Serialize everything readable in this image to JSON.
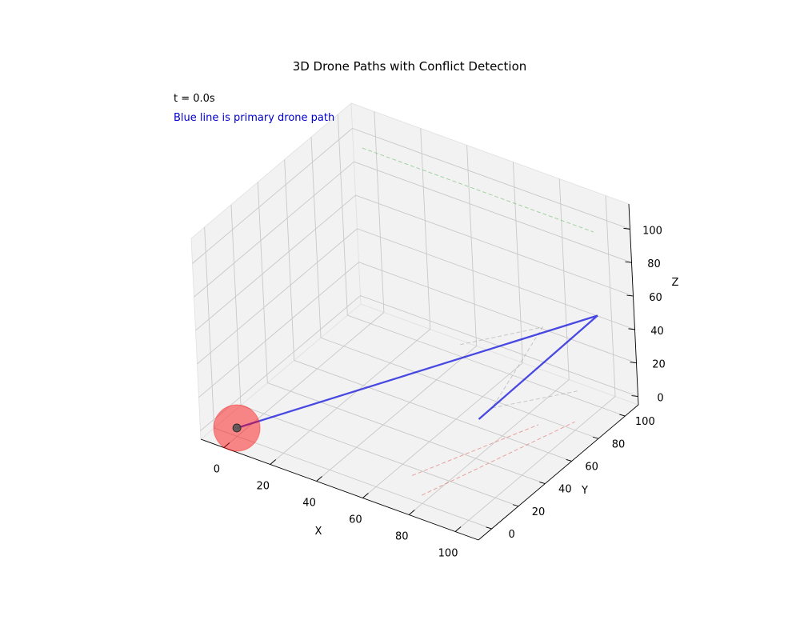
{
  "chart_data": {
    "type": "line",
    "projection": "3d",
    "title": "3D Drone Paths with Conflict Detection",
    "annotations": {
      "time": "t = 0.0s",
      "note": "Blue line is primary drone path",
      "note_color": "#0000cc"
    },
    "xlabel": "X",
    "ylabel": "Y",
    "zlabel": "Z",
    "xlim": [
      -10,
      110
    ],
    "ylim": [
      -10,
      110
    ],
    "zlim": [
      -5,
      115
    ],
    "xticks": [
      0,
      20,
      40,
      60,
      80,
      100
    ],
    "yticks": [
      0,
      20,
      40,
      60,
      80,
      100
    ],
    "zticks": [
      0,
      20,
      40,
      60,
      80,
      100
    ],
    "grid": true,
    "series": [
      {
        "role": "primary",
        "color": "#0000dd",
        "style": "solid",
        "points": [
          [
            0,
            0,
            0
          ],
          [
            100,
            100,
            50
          ],
          [
            70,
            60,
            0
          ]
        ]
      },
      {
        "role": "other",
        "color": "#2ca02c",
        "style": "dashed",
        "points": [
          [
            0,
            100,
            100
          ],
          [
            100,
            100,
            100
          ]
        ]
      },
      {
        "role": "other",
        "color": "#888888",
        "style": "dashed",
        "points": [
          [
            100,
            0,
            100
          ],
          [
            100,
            60,
            70
          ],
          [
            70,
            70,
            0
          ],
          [
            90,
            100,
            0
          ]
        ]
      },
      {
        "role": "other",
        "color": "#d62728",
        "style": "dashed",
        "points": [
          [
            80,
            0,
            0
          ],
          [
            100,
            80,
            0
          ]
        ]
      },
      {
        "role": "other",
        "color": "#d62728",
        "style": "dashed",
        "points": [
          [
            70,
            10,
            0
          ],
          [
            90,
            70,
            0
          ]
        ]
      }
    ],
    "markers": [
      {
        "name": "primary-drone",
        "position": [
          0,
          0,
          0
        ],
        "color": "#555555"
      }
    ],
    "conflict_zones": [
      {
        "center": [
          0,
          0,
          0
        ],
        "color": "#ff0000",
        "opacity": 0.45
      }
    ]
  }
}
